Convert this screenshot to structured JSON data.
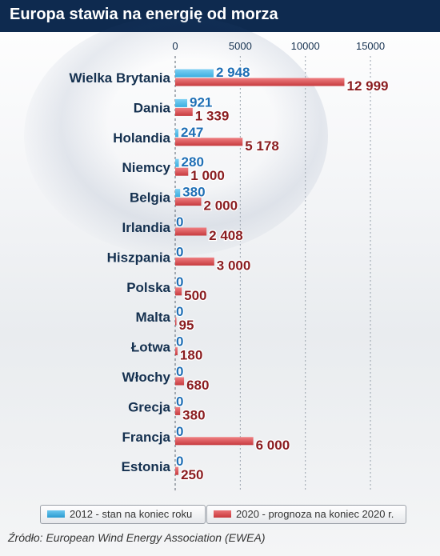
{
  "header": {
    "title": "Europa stawia na energię od morza"
  },
  "chart_data": {
    "type": "bar",
    "orientation": "horizontal",
    "categories": [
      "Wielka Brytania",
      "Dania",
      "Holandia",
      "Niemcy",
      "Belgia",
      "Irlandia",
      "Hiszpania",
      "Polska",
      "Malta",
      "Łotwa",
      "Włochy",
      "Grecja",
      "Francja",
      "Estonia"
    ],
    "series": [
      {
        "name": "2012 - stan na koniec roku",
        "color": "#3aaee0",
        "values": [
          2948,
          921,
          247,
          280,
          380,
          0,
          0,
          0,
          0,
          0,
          0,
          0,
          0,
          0
        ],
        "labels": [
          "2 948",
          "921",
          "247",
          "280",
          "380",
          "0",
          "0",
          "0",
          "0",
          "0",
          "0",
          "0",
          "0",
          "0"
        ]
      },
      {
        "name": "2020 - prognoza na koniec 2020 r.",
        "color": "#d9474b",
        "values": [
          12999,
          1339,
          5178,
          1000,
          2000,
          2408,
          3000,
          500,
          95,
          180,
          680,
          380,
          6000,
          250
        ],
        "labels": [
          "12 999",
          "1 339",
          "5 178",
          "1 000",
          "2 000",
          "2 408",
          "3 000",
          "500",
          "95",
          "180",
          "680",
          "380",
          "6 000",
          "250"
        ]
      }
    ],
    "x_ticks": [
      0,
      5000,
      10000,
      15000
    ],
    "x_tick_labels": [
      "0",
      "5000",
      "10000",
      "15000"
    ],
    "xlim": [
      0,
      17500
    ],
    "grid": true,
    "legend_position": "bottom",
    "label_colors": {
      "s0": "#1f6fb5",
      "s1": "#8a1c1f",
      "category": "#14304f"
    }
  },
  "source": "Źródło: European Wind Energy Association (EWEA)"
}
